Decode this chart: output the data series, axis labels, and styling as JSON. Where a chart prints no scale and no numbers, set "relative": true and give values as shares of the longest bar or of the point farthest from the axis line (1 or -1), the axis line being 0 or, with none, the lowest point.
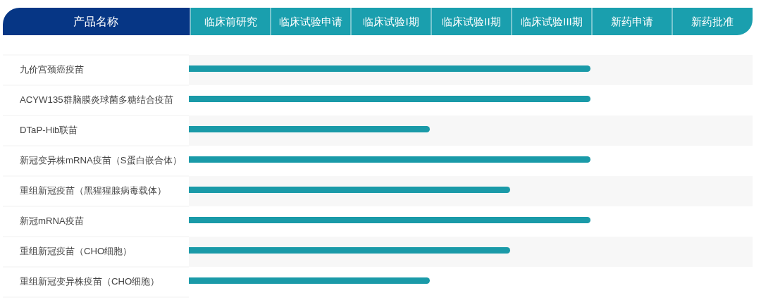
{
  "chart_data": {
    "type": "bar",
    "orientation": "horizontal",
    "relative": true,
    "ylabel": "产品名称",
    "categories": [
      "九价宫颈癌疫苗",
      "ACYW135群脑膜炎球菌多糖结合疫苗",
      "DTaP-Hib联苗",
      "新冠变异株mRNA疫苗（S蛋白嵌合体）",
      "重组新冠疫苗（黑猩猩腺病毒载体）",
      "新冠mRNA疫苗",
      "重组新冠疫苗（CHO细胞）",
      "重组新冠变异株疫苗（CHO细胞）"
    ],
    "values": [
      1,
      1,
      0.6,
      1,
      0.8,
      1,
      0.8,
      0.6
    ],
    "color": "#1a9aa8",
    "annotations": [
      "临床前研究",
      "临床试验申请",
      "临床试验I期",
      "临床试验II期",
      "临床试验III期",
      "新药申请",
      "新药批准"
    ]
  }
}
